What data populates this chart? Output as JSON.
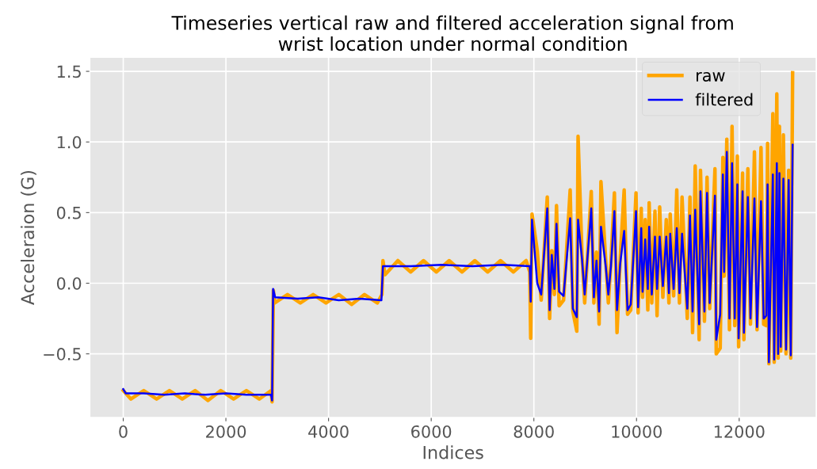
{
  "chart_data": {
    "type": "line",
    "title": "Timeseries vertical raw and filtered acceleration signal from\nwrist location under normal condition",
    "xlabel": "Indices",
    "ylabel": "Acceleraion (G)",
    "xlim": [
      -650,
      13500
    ],
    "ylim": [
      -0.95,
      1.6
    ],
    "xticks": [
      0,
      2000,
      4000,
      6000,
      8000,
      10000,
      12000
    ],
    "yticks": [
      {
        "value": -0.5,
        "label": "−0.5"
      },
      {
        "value": 0,
        "label": "0.0"
      },
      {
        "value": 0.5,
        "label": "0.5"
      },
      {
        "value": 1.0,
        "label": "1.0"
      },
      {
        "value": 1.5,
        "label": "1.5"
      }
    ],
    "grid": true,
    "legend": "top right",
    "line_style": "solid",
    "marker": "none",
    "series": [
      {
        "name": "raw",
        "color": "#ffa500",
        "x": [
          0,
          150,
          400,
          650,
          900,
          1150,
          1400,
          1650,
          1900,
          2150,
          2400,
          2650,
          2880,
          2900,
          2925,
          2950,
          3200,
          3450,
          3700,
          3950,
          4200,
          4450,
          4700,
          4950,
          5040,
          5060,
          5100,
          5350,
          5600,
          5850,
          6100,
          6350,
          6600,
          6850,
          7100,
          7350,
          7600,
          7850,
          7920,
          7938,
          7964,
          8066,
          8143,
          8261,
          8307,
          8349,
          8400,
          8441,
          8492,
          8579,
          8707,
          8759,
          8836,
          8861,
          8938,
          8990,
          9118,
          9169,
          9220,
          9271,
          9307,
          9400,
          9451,
          9502,
          9569,
          9620,
          9682,
          9759,
          9825,
          9887,
          9990,
          10031,
          10092,
          10118,
          10169,
          10220,
          10246,
          10297,
          10359,
          10400,
          10451,
          10513,
          10579,
          10631,
          10656,
          10723,
          10784,
          10836,
          10887,
          10989,
          11041,
          11092,
          11143,
          11220,
          11246,
          11323,
          11374,
          11425,
          11528,
          11553,
          11630,
          11682,
          11707,
          11759,
          11810,
          11861,
          11913,
          11964,
          11989,
          12066,
          12092,
          12169,
          12220,
          12297,
          12348,
          12425,
          12477,
          12528,
          12553,
          12579,
          12656,
          12682,
          12733,
          12759,
          12784,
          12810,
          12861,
          12913,
          12964,
          13005,
          13041
        ],
        "values": [
          -0.76,
          -0.82,
          -0.76,
          -0.82,
          -0.76,
          -0.82,
          -0.76,
          -0.83,
          -0.76,
          -0.82,
          -0.76,
          -0.82,
          -0.76,
          -0.84,
          -0.05,
          -0.14,
          -0.08,
          -0.14,
          -0.08,
          -0.14,
          -0.08,
          -0.15,
          -0.08,
          -0.14,
          -0.08,
          0.16,
          0.06,
          0.16,
          0.08,
          0.16,
          0.08,
          0.16,
          0.08,
          0.16,
          0.08,
          0.16,
          0.08,
          0.16,
          0.08,
          -0.39,
          0.49,
          0.23,
          -0.12,
          0.61,
          -0.25,
          0.23,
          -0.08,
          0.55,
          -0.16,
          -0.12,
          0.66,
          -0.2,
          -0.34,
          1.04,
          0.2,
          -0.14,
          0.65,
          -0.14,
          0.22,
          -0.29,
          0.72,
          0.16,
          -0.14,
          0.16,
          0.64,
          -0.35,
          0.18,
          0.66,
          -0.22,
          -0.19,
          0.64,
          -0.21,
          0.53,
          -0.1,
          0.45,
          -0.19,
          0.57,
          -0.14,
          0.51,
          -0.23,
          0.54,
          -0.1,
          0.45,
          -0.14,
          0.49,
          -0.09,
          0.66,
          -0.14,
          0.61,
          -0.25,
          0.61,
          -0.35,
          0.83,
          -0.4,
          0.8,
          -0.27,
          0.75,
          -0.18,
          0.81,
          -0.5,
          -0.46,
          0.89,
          0.05,
          1.02,
          -0.33,
          1.11,
          -0.3,
          0.9,
          -0.45,
          0.78,
          -0.4,
          0.81,
          -0.29,
          0.93,
          -0.33,
          0.96,
          -0.29,
          -0.3,
          0.99,
          -0.57,
          1.2,
          -0.56,
          1.34,
          -0.53,
          1.11,
          -0.48,
          1.05,
          -0.5,
          0.8,
          -0.53,
          1.49
        ]
      },
      {
        "name": "filtered",
        "color": "#0000ff",
        "x": [
          0,
          50,
          400,
          800,
          1200,
          1600,
          2000,
          2400,
          2880,
          2900,
          2920,
          2960,
          3400,
          3800,
          4200,
          4600,
          5030,
          5060,
          5100,
          5600,
          6200,
          6800,
          7400,
          7920,
          7938,
          7964,
          8066,
          8143,
          8261,
          8307,
          8349,
          8400,
          8441,
          8492,
          8579,
          8707,
          8759,
          8836,
          8861,
          8938,
          8990,
          9118,
          9169,
          9220,
          9271,
          9307,
          9400,
          9451,
          9502,
          9569,
          9620,
          9682,
          9759,
          9825,
          9887,
          9990,
          10031,
          10092,
          10118,
          10169,
          10220,
          10246,
          10297,
          10359,
          10400,
          10451,
          10513,
          10579,
          10631,
          10656,
          10723,
          10784,
          10836,
          10887,
          10989,
          11041,
          11092,
          11143,
          11220,
          11246,
          11323,
          11374,
          11425,
          11528,
          11553,
          11630,
          11682,
          11707,
          11759,
          11810,
          11861,
          11913,
          11964,
          11989,
          12066,
          12092,
          12169,
          12220,
          12297,
          12348,
          12425,
          12477,
          12528,
          12553,
          12579,
          12656,
          12682,
          12733,
          12759,
          12784,
          12810,
          12861,
          12913,
          12964,
          13005,
          13041
        ],
        "values": [
          -0.75,
          -0.78,
          -0.78,
          -0.79,
          -0.78,
          -0.79,
          -0.78,
          -0.79,
          -0.79,
          -0.83,
          -0.04,
          -0.1,
          -0.11,
          -0.1,
          -0.12,
          -0.11,
          -0.12,
          0.12,
          0.12,
          0.12,
          0.13,
          0.12,
          0.13,
          0.12,
          -0.13,
          0.45,
          0.0,
          -0.08,
          0.53,
          -0.19,
          0.2,
          -0.04,
          0.42,
          -0.06,
          -0.09,
          0.46,
          -0.18,
          -0.24,
          0.45,
          0.17,
          -0.08,
          0.53,
          -0.1,
          0.16,
          -0.2,
          0.4,
          0.12,
          -0.08,
          0.12,
          0.51,
          -0.19,
          0.14,
          0.37,
          -0.19,
          -0.15,
          0.51,
          -0.17,
          0.39,
          -0.06,
          0.31,
          -0.04,
          0.4,
          -0.08,
          0.33,
          -0.04,
          0.33,
          -0.02,
          0.33,
          -0.07,
          0.35,
          -0.04,
          0.39,
          -0.07,
          0.35,
          -0.18,
          0.48,
          -0.2,
          0.52,
          -0.29,
          0.65,
          -0.2,
          0.64,
          -0.14,
          0.62,
          -0.4,
          -0.22,
          0.77,
          0.08,
          0.93,
          -0.25,
          0.85,
          -0.25,
          0.7,
          -0.39,
          0.65,
          -0.35,
          0.61,
          -0.25,
          0.6,
          -0.31,
          0.58,
          -0.25,
          -0.23,
          0.7,
          -0.56,
          0.77,
          -0.54,
          0.85,
          -0.5,
          0.78,
          -0.45,
          0.74,
          -0.47,
          0.73,
          -0.51,
          0.98
        ]
      }
    ]
  }
}
